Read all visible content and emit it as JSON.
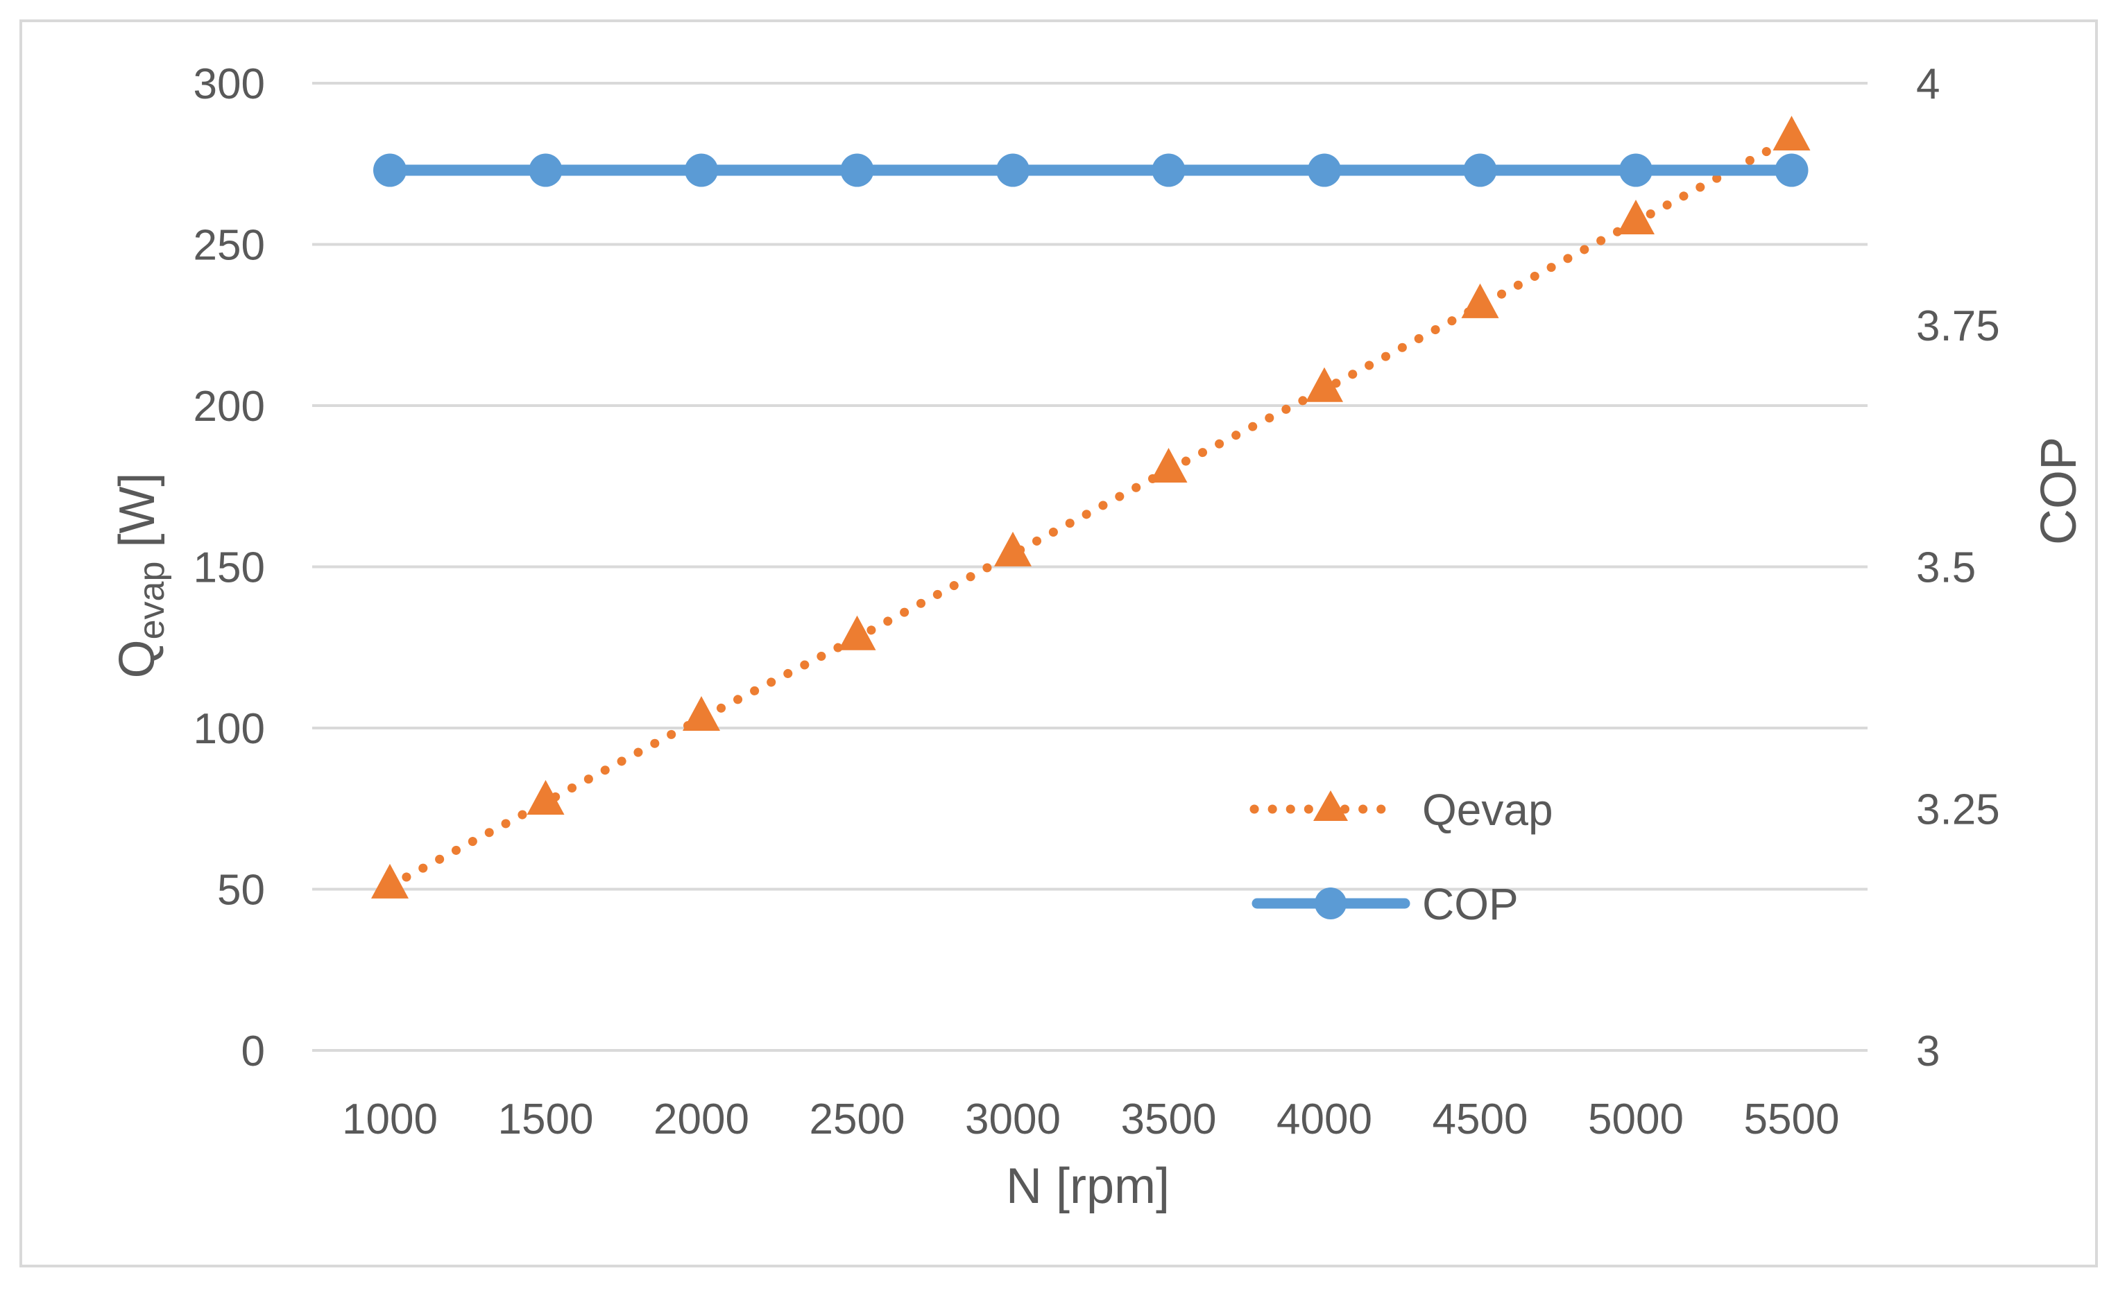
{
  "chart_data": {
    "type": "line",
    "title": "",
    "x": [
      1000,
      1500,
      2000,
      2500,
      3000,
      3500,
      4000,
      4500,
      5000,
      5500
    ],
    "x_tick_labels": [
      "1000",
      "1500",
      "2000",
      "2500",
      "3000",
      "3500",
      "4000",
      "4500",
      "5000",
      "5500"
    ],
    "xlabel": "N [rpm]",
    "ylabel": {
      "main": "Q",
      "sub": "evap",
      "unit": " [W]"
    },
    "ylim": [
      0,
      300
    ],
    "y_ticks": [
      0,
      50,
      100,
      150,
      200,
      250,
      300
    ],
    "y2label": "COP",
    "y2lim": [
      3,
      4
    ],
    "y2_ticks": [
      3,
      3.25,
      3.5,
      3.75,
      4
    ],
    "y2_tick_labels": [
      "3",
      "3.25",
      "3.5",
      "3.75",
      "4"
    ],
    "grid": true,
    "legend_position": "center-right",
    "series": [
      {
        "name": "Qevap",
        "axis": "left",
        "style": "dotted",
        "marker": "triangle",
        "color": "#ED7D31",
        "values": [
          51,
          77,
          103,
          128,
          154,
          180,
          205,
          231,
          257,
          283
        ]
      },
      {
        "name": "COP",
        "axis": "right",
        "style": "solid",
        "marker": "circle",
        "color": "#5B9BD5",
        "values": [
          3.91,
          3.91,
          3.91,
          3.91,
          3.91,
          3.91,
          3.91,
          3.91,
          3.91,
          3.91
        ]
      }
    ]
  },
  "colors": {
    "gridline": "#d9d9d9",
    "text": "#595959",
    "frame": "#d9d9d9"
  }
}
